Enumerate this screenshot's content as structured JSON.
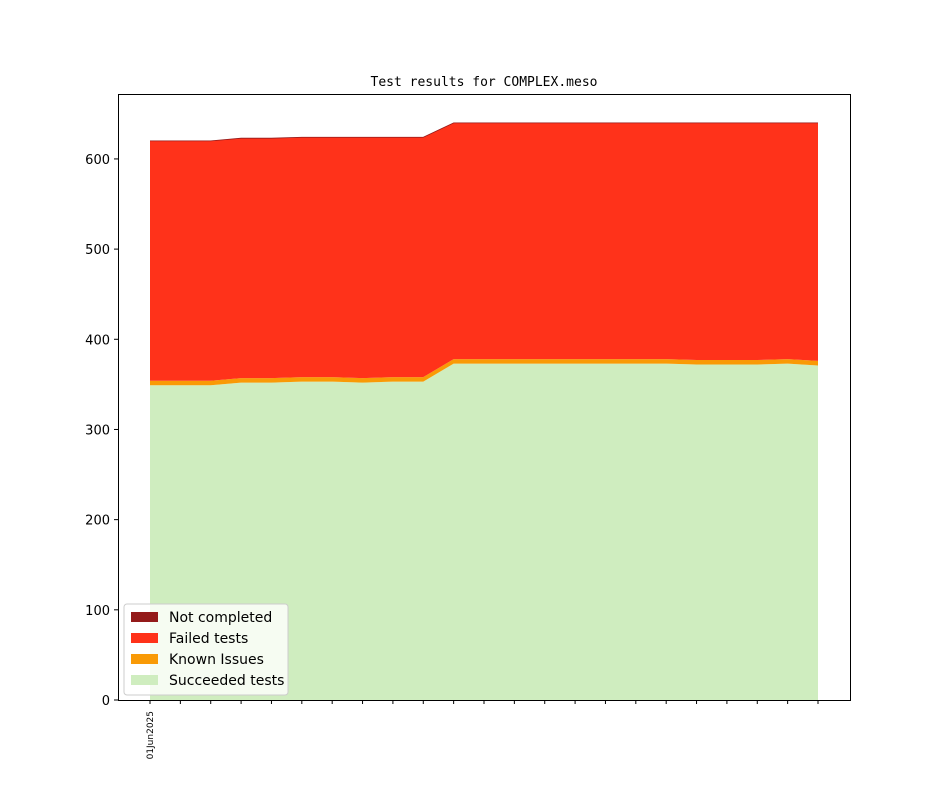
{
  "chart_data": {
    "type": "area",
    "stacked": true,
    "title": "Test results for COMPLEX.meso",
    "xlabel": "",
    "ylabel": "",
    "ylim": [
      0,
      672
    ],
    "yticks": [
      0,
      100,
      200,
      300,
      400,
      500,
      600
    ],
    "x_points": 23,
    "xtick_labels": [
      {
        "index": 0,
        "label": "01Jun2025"
      }
    ],
    "legend_placement": "lower-left",
    "series": [
      {
        "name": "Succeeded tests",
        "color": "#cfedbf",
        "values": [
          349,
          349,
          349,
          352,
          352,
          353,
          353,
          352,
          353,
          353,
          373,
          373,
          373,
          373,
          373,
          373,
          373,
          373,
          372,
          372,
          372,
          373,
          371
        ]
      },
      {
        "name": "Known Issues",
        "color": "#f99a06",
        "values": [
          5,
          5,
          5,
          5,
          5,
          5,
          5,
          5,
          5,
          5,
          5,
          5,
          5,
          5,
          5,
          5,
          5,
          5,
          5,
          5,
          5,
          5,
          5
        ]
      },
      {
        "name": "Failed tests",
        "color": "#ff321a",
        "values": [
          266,
          266,
          266,
          266,
          266,
          266,
          266,
          267,
          266,
          266,
          262,
          262,
          262,
          262,
          262,
          262,
          262,
          262,
          263,
          263,
          263,
          262,
          264
        ]
      },
      {
        "name": "Not completed",
        "color": "#941a1a",
        "values": [
          0,
          0,
          0,
          0,
          0,
          0,
          0,
          0,
          0,
          0,
          0,
          0,
          0,
          0,
          0,
          0,
          0,
          0,
          0,
          0,
          0,
          0,
          0
        ]
      }
    ]
  }
}
